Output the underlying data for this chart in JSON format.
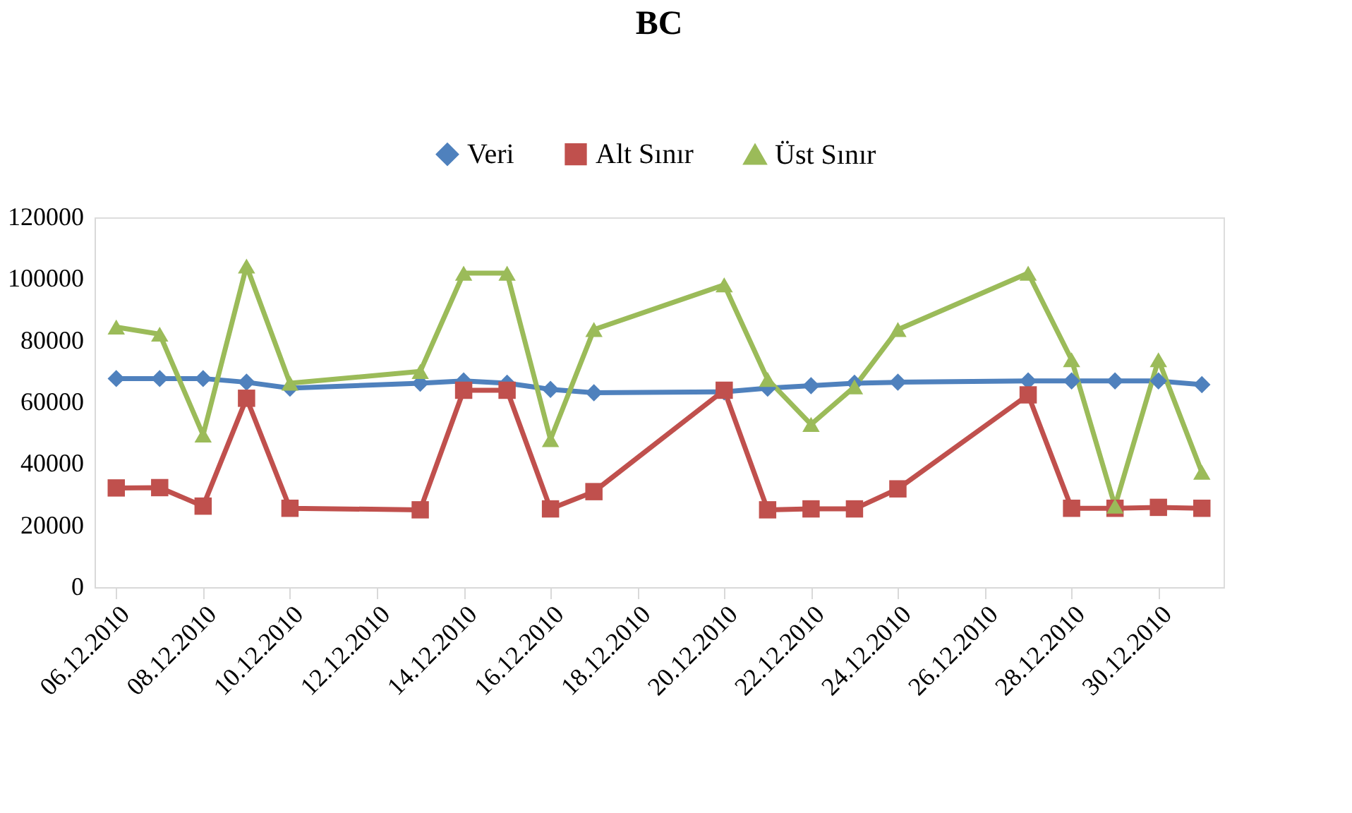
{
  "chart_data": {
    "type": "line",
    "title": "BC",
    "x": [
      "2010-12-06",
      "2010-12-07",
      "2010-12-08",
      "2010-12-09",
      "2010-12-10",
      "2010-12-13",
      "2010-12-14",
      "2010-12-15",
      "2010-12-16",
      "2010-12-17",
      "2010-12-20",
      "2010-12-21",
      "2010-12-22",
      "2010-12-23",
      "2010-12-24",
      "2010-12-27",
      "2010-12-28",
      "2010-12-29",
      "2010-12-30",
      "2010-12-31"
    ],
    "series": [
      {
        "name": "Veri",
        "color": "#4f81bd",
        "marker": "diamond",
        "values": [
          67700,
          67700,
          67700,
          66500,
          64600,
          66200,
          66900,
          66200,
          64200,
          63100,
          63400,
          64600,
          65400,
          66200,
          66500,
          66900,
          66900,
          66900,
          66900,
          65700
        ]
      },
      {
        "name": "Alt Sınır",
        "color": "#c0504d",
        "marker": "square",
        "values": [
          32200,
          32300,
          26300,
          61300,
          25600,
          25100,
          63900,
          63900,
          25400,
          31000,
          63900,
          25100,
          25400,
          25400,
          31900,
          62400,
          25600,
          25600,
          25900,
          25600
        ]
      },
      {
        "name": "Üst Sınır",
        "color": "#9bbb59",
        "marker": "triangle",
        "values": [
          84400,
          82100,
          49400,
          104200,
          66200,
          70000,
          101900,
          101900,
          47900,
          83600,
          98100,
          67400,
          52800,
          65000,
          83600,
          101900,
          73800,
          26300,
          73800,
          37300
        ]
      }
    ],
    "xlim": [
      "2010-12-05T12:00",
      "2010-12-31T12:00"
    ],
    "xticks": [
      {
        "value": "2010-12-06",
        "label": "06.12.2010"
      },
      {
        "value": "2010-12-08",
        "label": "08.12.2010"
      },
      {
        "value": "2010-12-10",
        "label": "10.12.2010"
      },
      {
        "value": "2010-12-12",
        "label": "12.12.2010"
      },
      {
        "value": "2010-12-14",
        "label": "14.12.2010"
      },
      {
        "value": "2010-12-16",
        "label": "16.12.2010"
      },
      {
        "value": "2010-12-18",
        "label": "18.12.2010"
      },
      {
        "value": "2010-12-20",
        "label": "20.12.2010"
      },
      {
        "value": "2010-12-22",
        "label": "22.12.2010"
      },
      {
        "value": "2010-12-24",
        "label": "24.12.2010"
      },
      {
        "value": "2010-12-26",
        "label": "26.12.2010"
      },
      {
        "value": "2010-12-28",
        "label": "28.12.2010"
      },
      {
        "value": "2010-12-30",
        "label": "30.12.2010"
      }
    ],
    "ylim": [
      0,
      120000
    ],
    "yticks": [
      0,
      20000,
      40000,
      60000,
      80000,
      100000,
      120000
    ],
    "grid": false,
    "legend": "top",
    "line_style": "solid"
  }
}
